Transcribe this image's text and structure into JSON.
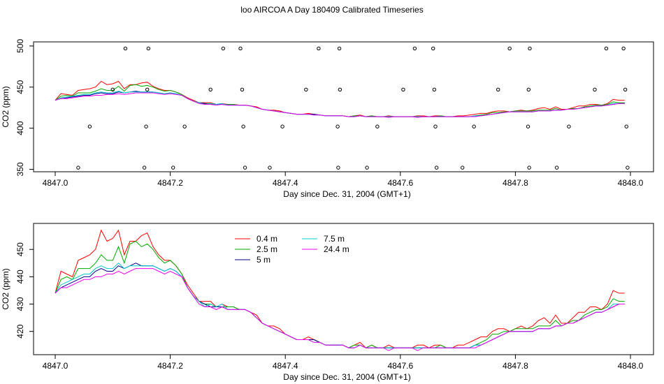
{
  "chart_data": [
    {
      "type": "line",
      "title": "loo AIRCOA A  Day 180409  Calibrated Timeseries",
      "xlabel": "Day since Dec. 31, 2004 (GMT+1)",
      "ylabel": "CO2 (ppm)",
      "xlim": [
        4847.0,
        4848.0
      ],
      "ylim": [
        347,
        505
      ],
      "xticks": [
        "4847.0",
        "4847.2",
        "4847.4",
        "4847.6",
        "4847.8",
        "4848.0"
      ],
      "yticks": [
        "350",
        "400",
        "450",
        "500"
      ],
      "grid": false,
      "x": [
        4847.0,
        4847.01,
        4847.02,
        4847.03,
        4847.04,
        4847.05,
        4847.06,
        4847.07,
        4847.08,
        4847.09,
        4847.1,
        4847.11,
        4847.12,
        4847.13,
        4847.14,
        4847.15,
        4847.16,
        4847.17,
        4847.18,
        4847.19,
        4847.2,
        4847.21,
        4847.22,
        4847.23,
        4847.24,
        4847.25,
        4847.26,
        4847.27,
        4847.28,
        4847.29,
        4847.3,
        4847.31,
        4847.32,
        4847.33,
        4847.34,
        4847.35,
        4847.36,
        4847.37,
        4847.38,
        4847.39,
        4847.4,
        4847.41,
        4847.42,
        4847.43,
        4847.44,
        4847.45,
        4847.46,
        4847.47,
        4847.48,
        4847.49,
        4847.5,
        4847.51,
        4847.52,
        4847.53,
        4847.54,
        4847.55,
        4847.56,
        4847.57,
        4847.58,
        4847.59,
        4847.6,
        4847.61,
        4847.62,
        4847.63,
        4847.64,
        4847.65,
        4847.66,
        4847.67,
        4847.68,
        4847.69,
        4847.7,
        4847.71,
        4847.72,
        4847.73,
        4847.74,
        4847.75,
        4847.76,
        4847.77,
        4847.78,
        4847.79,
        4847.8,
        4847.81,
        4847.82,
        4847.83,
        4847.84,
        4847.85,
        4847.86,
        4847.87,
        4847.88,
        4847.89,
        4847.9,
        4847.91,
        4847.92,
        4847.93,
        4847.94,
        4847.95,
        4847.96,
        4847.97,
        4847.98,
        4847.99
      ],
      "series": [
        {
          "name": "0.4 m",
          "color": "#ff0000",
          "values": [
            434,
            442,
            441,
            440,
            446,
            447,
            448,
            450,
            457,
            453,
            454,
            457,
            448,
            453,
            453,
            455,
            456,
            451,
            448,
            446,
            446,
            444,
            441,
            437,
            434,
            431,
            431,
            431,
            429,
            430,
            429,
            429,
            428,
            428,
            427,
            426,
            423,
            422,
            422,
            421,
            419,
            418,
            417,
            417,
            418,
            417,
            416,
            415,
            415,
            415,
            415,
            414,
            415,
            416,
            414,
            415,
            414,
            414,
            415,
            414,
            414,
            414,
            414,
            415,
            415,
            414,
            415,
            415,
            414,
            414,
            415,
            415,
            416,
            417,
            418,
            418,
            420,
            421,
            421,
            420,
            421,
            422,
            421,
            422,
            424,
            425,
            423,
            426,
            423,
            423,
            425,
            427,
            427,
            429,
            429,
            428,
            430,
            435,
            434,
            434
          ]
        },
        {
          "name": "2.5 m",
          "color": "#00aa00",
          "values": [
            434,
            439,
            440,
            439,
            443,
            443,
            443,
            445,
            448,
            446,
            446,
            451,
            445,
            452,
            453,
            451,
            452,
            450,
            447,
            445,
            446,
            444,
            441,
            436,
            433,
            431,
            430,
            430,
            429,
            429,
            429,
            429,
            428,
            428,
            427,
            425,
            423,
            422,
            421,
            420,
            419,
            418,
            417,
            417,
            417,
            417,
            416,
            415,
            415,
            415,
            415,
            414,
            415,
            415,
            414,
            415,
            414,
            414,
            414,
            414,
            414,
            414,
            414,
            414,
            414,
            414,
            414,
            415,
            414,
            414,
            414,
            414,
            414,
            415,
            416,
            417,
            419,
            419,
            420,
            420,
            421,
            421,
            421,
            421,
            422,
            422,
            422,
            424,
            422,
            423,
            424,
            424,
            426,
            427,
            428,
            428,
            429,
            432,
            431,
            431
          ]
        },
        {
          "name": "5 m",
          "color": "#00008b",
          "values": [
            434,
            436,
            437,
            438,
            439,
            440,
            440,
            442,
            443,
            442,
            442,
            444,
            443,
            444,
            445,
            444,
            444,
            444,
            443,
            442,
            443,
            442,
            440,
            436,
            433,
            431,
            430,
            429,
            429,
            429,
            428,
            428,
            428,
            428,
            427,
            425,
            423,
            422,
            421,
            420,
            419,
            418,
            417,
            417,
            417,
            417,
            416,
            415,
            415,
            415,
            415,
            414,
            414,
            415,
            414,
            414,
            414,
            414,
            414,
            414,
            414,
            414,
            414,
            414,
            414,
            414,
            414,
            414,
            414,
            414,
            414,
            414,
            414,
            415,
            415,
            416,
            417,
            418,
            419,
            420,
            420,
            420,
            420,
            420,
            421,
            421,
            421,
            422,
            422,
            423,
            423,
            424,
            425,
            426,
            427,
            427,
            428,
            429,
            430,
            430
          ]
        },
        {
          "name": "7.5 m",
          "color": "#00cccc",
          "values": [
            434,
            437,
            438,
            439,
            440,
            441,
            441,
            443,
            444,
            443,
            443,
            445,
            443,
            444,
            444,
            444,
            444,
            444,
            443,
            442,
            443,
            442,
            440,
            436,
            433,
            431,
            429,
            430,
            429,
            430,
            428,
            428,
            428,
            428,
            427,
            425,
            423,
            422,
            421,
            420,
            419,
            418,
            417,
            417,
            417,
            416,
            416,
            415,
            415,
            415,
            415,
            414,
            414,
            415,
            414,
            414,
            414,
            414,
            414,
            414,
            414,
            414,
            414,
            414,
            414,
            414,
            414,
            414,
            414,
            414,
            414,
            414,
            414,
            415,
            415,
            416,
            417,
            418,
            419,
            420,
            420,
            420,
            420,
            420,
            421,
            421,
            421,
            422,
            422,
            423,
            423,
            424,
            425,
            426,
            427,
            427,
            428,
            430,
            430,
            430
          ]
        },
        {
          "name": "24.4 m",
          "color": "#ee00ee",
          "values": [
            434,
            436,
            436,
            437,
            438,
            439,
            439,
            440,
            440,
            441,
            441,
            442,
            441,
            442,
            443,
            443,
            443,
            443,
            442,
            441,
            442,
            441,
            440,
            436,
            433,
            430,
            429,
            429,
            428,
            429,
            428,
            428,
            428,
            428,
            427,
            425,
            423,
            422,
            421,
            420,
            419,
            418,
            417,
            417,
            417,
            416,
            416,
            415,
            415,
            415,
            415,
            414,
            414,
            415,
            414,
            414,
            414,
            414,
            413,
            414,
            414,
            414,
            414,
            413,
            414,
            414,
            414,
            414,
            414,
            414,
            414,
            414,
            414,
            414,
            415,
            416,
            417,
            418,
            419,
            420,
            420,
            420,
            420,
            420,
            421,
            421,
            421,
            422,
            422,
            423,
            423,
            424,
            425,
            426,
            427,
            427,
            428,
            429,
            430,
            430
          ]
        }
      ],
      "points": [
        {
          "x": 4847.04,
          "y": 352
        },
        {
          "x": 4847.06,
          "y": 402
        },
        {
          "x": 4847.1,
          "y": 447
        },
        {
          "x": 4847.122,
          "y": 497
        },
        {
          "x": 4847.155,
          "y": 352
        },
        {
          "x": 4847.158,
          "y": 402
        },
        {
          "x": 4847.16,
          "y": 447
        },
        {
          "x": 4847.162,
          "y": 497
        },
        {
          "x": 4847.205,
          "y": 352
        },
        {
          "x": 4847.225,
          "y": 402
        },
        {
          "x": 4847.27,
          "y": 447
        },
        {
          "x": 4847.292,
          "y": 497
        },
        {
          "x": 4847.322,
          "y": 497
        },
        {
          "x": 4847.325,
          "y": 447
        },
        {
          "x": 4847.327,
          "y": 402
        },
        {
          "x": 4847.33,
          "y": 352
        },
        {
          "x": 4847.373,
          "y": 352
        },
        {
          "x": 4847.395,
          "y": 402
        },
        {
          "x": 4847.436,
          "y": 447
        },
        {
          "x": 4847.458,
          "y": 497
        },
        {
          "x": 4847.491,
          "y": 402
        },
        {
          "x": 4847.492,
          "y": 352
        },
        {
          "x": 4847.494,
          "y": 497
        },
        {
          "x": 4847.495,
          "y": 447
        },
        {
          "x": 4847.542,
          "y": 352
        },
        {
          "x": 4847.56,
          "y": 402
        },
        {
          "x": 4847.605,
          "y": 447
        },
        {
          "x": 4847.625,
          "y": 497
        },
        {
          "x": 4847.657,
          "y": 497
        },
        {
          "x": 4847.659,
          "y": 447
        },
        {
          "x": 4847.661,
          "y": 402
        },
        {
          "x": 4847.663,
          "y": 352
        },
        {
          "x": 4847.708,
          "y": 352
        },
        {
          "x": 4847.728,
          "y": 402
        },
        {
          "x": 4847.77,
          "y": 447
        },
        {
          "x": 4847.79,
          "y": 497
        },
        {
          "x": 4847.822,
          "y": 402
        },
        {
          "x": 4847.823,
          "y": 447
        },
        {
          "x": 4847.824,
          "y": 352
        },
        {
          "x": 4847.825,
          "y": 497
        },
        {
          "x": 4847.872,
          "y": 352
        },
        {
          "x": 4847.893,
          "y": 402
        },
        {
          "x": 4847.938,
          "y": 447
        },
        {
          "x": 4847.958,
          "y": 497
        },
        {
          "x": 4847.988,
          "y": 497
        },
        {
          "x": 4847.991,
          "y": 447
        },
        {
          "x": 4847.993,
          "y": 402
        },
        {
          "x": 4847.995,
          "y": 352
        }
      ]
    },
    {
      "type": "line",
      "title": "",
      "xlabel": "Day since Dec. 31, 2004 (GMT+1)",
      "ylabel": "CO2 (ppm)",
      "xlim": [
        4847.0,
        4848.0
      ],
      "ylim": [
        411.5,
        459.5
      ],
      "xticks": [
        "4847.0",
        "4847.2",
        "4847.4",
        "4847.6",
        "4847.8",
        "4848.0"
      ],
      "yticks": [
        "420",
        "430",
        "440",
        "450"
      ],
      "grid": false,
      "legend": "top-left",
      "legend_entries": [
        "0.4 m",
        "2.5 m",
        "5 m",
        "7.5 m",
        "24.4 m"
      ]
    }
  ]
}
